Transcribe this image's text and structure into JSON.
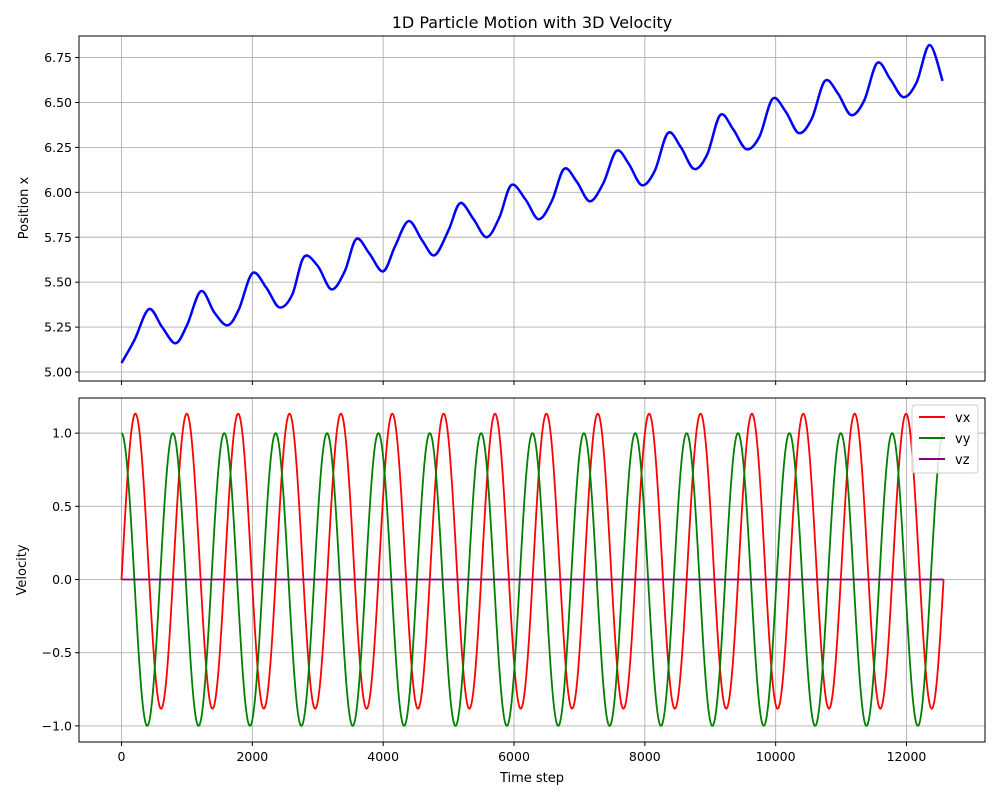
{
  "chart_data": [
    {
      "type": "line",
      "title": "1D Particle Motion with 3D Velocity",
      "xlabel": "",
      "ylabel": "Position x",
      "xlim": [
        -650,
        13200
      ],
      "ylim": [
        4.95,
        6.87
      ],
      "grid": true,
      "x_ticks": [
        0,
        2000,
        4000,
        6000,
        8000,
        10000,
        12000
      ],
      "x_tick_labels": [
        "",
        "",
        "",
        "",
        "",
        "",
        ""
      ],
      "y_ticks": [
        5.0,
        5.25,
        5.5,
        5.75,
        6.0,
        6.25,
        6.5,
        6.75
      ],
      "y_tick_labels": [
        "5.00",
        "5.25",
        "5.50",
        "5.75",
        "6.00",
        "6.25",
        "6.50",
        "6.75"
      ],
      "series": [
        {
          "color": "#0000ff",
          "x": [
            0,
            200,
            418,
            621,
            824,
            1000,
            1214,
            1421,
            1621,
            1795,
            2000,
            2212,
            2412,
            2609,
            2788,
            3000,
            3209,
            3412,
            3588,
            3788,
            4000,
            4182,
            4388,
            4600,
            4788,
            5000,
            5176,
            5382,
            5582,
            5776,
            5958,
            6176,
            6376,
            6576,
            6764,
            6958,
            7158,
            7364,
            7564,
            7752,
            7952,
            8152,
            8352,
            8552,
            8752,
            8952,
            9152,
            9352,
            9552,
            9752,
            9952,
            10152,
            10352,
            10552,
            10752,
            10952,
            11152,
            11352,
            11552,
            11752,
            11952,
            12152,
            12352,
            12552
          ],
          "y": [
            5.05,
            5.18,
            5.35,
            5.25,
            5.16,
            5.26,
            5.45,
            5.33,
            5.26,
            5.35,
            5.55,
            5.47,
            5.36,
            5.43,
            5.64,
            5.59,
            5.46,
            5.56,
            5.74,
            5.66,
            5.56,
            5.7,
            5.84,
            5.73,
            5.65,
            5.79,
            5.94,
            5.85,
            5.75,
            5.86,
            6.04,
            5.96,
            5.85,
            5.95,
            6.13,
            6.06,
            5.95,
            6.05,
            6.23,
            6.16,
            6.04,
            6.12,
            6.33,
            6.25,
            6.13,
            6.21,
            6.43,
            6.35,
            6.24,
            6.31,
            6.52,
            6.45,
            6.33,
            6.41,
            6.62,
            6.55,
            6.43,
            6.51,
            6.72,
            6.63,
            6.53,
            6.61,
            6.82,
            6.62
          ]
        }
      ]
    },
    {
      "type": "line",
      "title": "",
      "xlabel": "Time step",
      "ylabel": "Velocity",
      "xlim": [
        -650,
        13200
      ],
      "ylim": [
        -1.11,
        1.24
      ],
      "grid": true,
      "legend": "top-right",
      "x_ticks": [
        0,
        2000,
        4000,
        6000,
        8000,
        10000,
        12000
      ],
      "x_tick_labels": [
        "0",
        "2000",
        "4000",
        "6000",
        "8000",
        "10000",
        "12000"
      ],
      "y_ticks": [
        -1.0,
        -0.5,
        0.0,
        0.5,
        1.0
      ],
      "y_tick_labels": [
        "−1.0",
        "−0.5",
        "0.0",
        "0.5",
        "1.0"
      ],
      "t_end": 12566,
      "series": [
        {
          "name": "vx",
          "color": "#ff0000",
          "waveform": "vx = sin(t/125) + 0.125*(1 - cos(t/125))",
          "amplitude": 1.0,
          "offset_amplitude": 0.125,
          "period": 785.4
        },
        {
          "name": "vy",
          "color": "#008000",
          "waveform": "vy = cos(t/125)",
          "amplitude": 1.0,
          "period": 785.4
        },
        {
          "name": "vz",
          "color": "#800080",
          "waveform": "vz = 0",
          "amplitude": 0.0
        }
      ]
    }
  ]
}
